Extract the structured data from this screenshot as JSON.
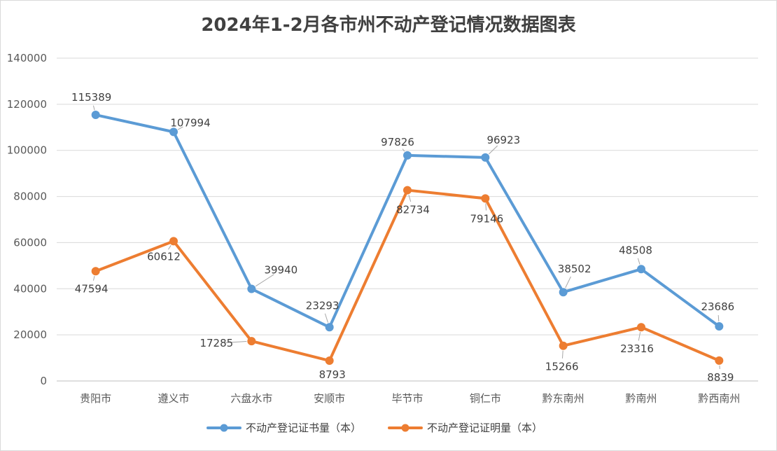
{
  "chart_data": {
    "type": "line",
    "title": "2024年1-2月各市州不动产登记情况数据图表",
    "categories": [
      "贵阳市",
      "遵义市",
      "六盘水市",
      "安顺市",
      "毕节市",
      "铜仁市",
      "黔东南州",
      "黔南州",
      "黔西南州"
    ],
    "ylim": [
      0,
      140000
    ],
    "yticks": [
      0,
      20000,
      40000,
      60000,
      80000,
      100000,
      120000,
      140000
    ],
    "grid": true,
    "legend_position": "bottom",
    "series": [
      {
        "name": "不动产登记证书量（本）",
        "color": "#5b9bd5",
        "values": [
          115389,
          107994,
          39940,
          23293,
          97826,
          96923,
          38502,
          48508,
          23686
        ]
      },
      {
        "name": "不动产登记证明量（本）",
        "color": "#ed7d31",
        "values": [
          47594,
          60612,
          17285,
          8793,
          82734,
          79146,
          15266,
          23316,
          8839
        ]
      }
    ]
  }
}
